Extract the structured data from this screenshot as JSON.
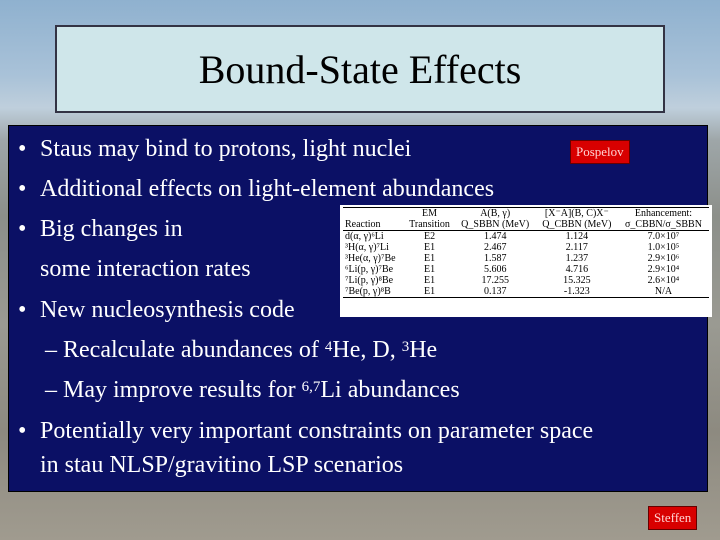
{
  "slide": {
    "title": "Bound-State Effects",
    "bullets": [
      {
        "text": "Staus may bind to protons, light nuclei"
      },
      {
        "text": "Additional effects on light-element abundances"
      },
      {
        "text": "Big changes in"
      },
      {
        "text": "some interaction rates"
      },
      {
        "text": "New nucleosynthesis code"
      },
      {
        "text": "Potentially very important constraints on parameter space"
      },
      {
        "text": "in stau NLSP/gravitino LSP scenarios"
      }
    ],
    "subbullets": {
      "first": {
        "prefix": "– Recalculate abundances of ",
        "sup1": "4",
        "mid1": "He, D, ",
        "sup2": "3",
        "mid2": "He"
      },
      "second": {
        "prefix": "– May improve results for ",
        "sup": "6,7",
        "suffix": "Li abundances"
      }
    },
    "bullet_glyph": "•",
    "tag_pospelov": "Pospelov",
    "tag_steffen": "Steffen"
  },
  "table": {
    "header1": [
      "",
      "EM",
      "A(B, γ)",
      "[X⁻A](B, C)X⁻",
      "Enhancement:"
    ],
    "header2": [
      "Reaction",
      "Transition",
      "Q_SBBN (MeV)",
      "Q_CBBN (MeV)",
      "σ_CBBN/σ_SBBN"
    ],
    "rows": [
      [
        "d(α, γ)⁶Li",
        "E2",
        "1.474",
        "1.124",
        "7.0×10⁷"
      ],
      [
        "³H(α, γ)⁷Li",
        "E1",
        "2.467",
        "2.117",
        "1.0×10⁵"
      ],
      [
        "³He(α, γ)⁷Be",
        "E1",
        "1.587",
        "1.237",
        "2.9×10⁶"
      ],
      [
        "⁶Li(p, γ)⁷Be",
        "E1",
        "5.606",
        "4.716",
        "2.9×10⁴"
      ],
      [
        "⁷Li(p, γ)⁸Be",
        "E1",
        "17.255",
        "15.325",
        "2.6×10⁴"
      ],
      [
        "⁷Be(p, γ)⁸B",
        "E1",
        "0.137",
        "-1.323",
        "N/A"
      ]
    ]
  },
  "colors": {
    "panel": "#0b1065",
    "title_box": "#cfe6ea",
    "tag": "#d80000"
  }
}
